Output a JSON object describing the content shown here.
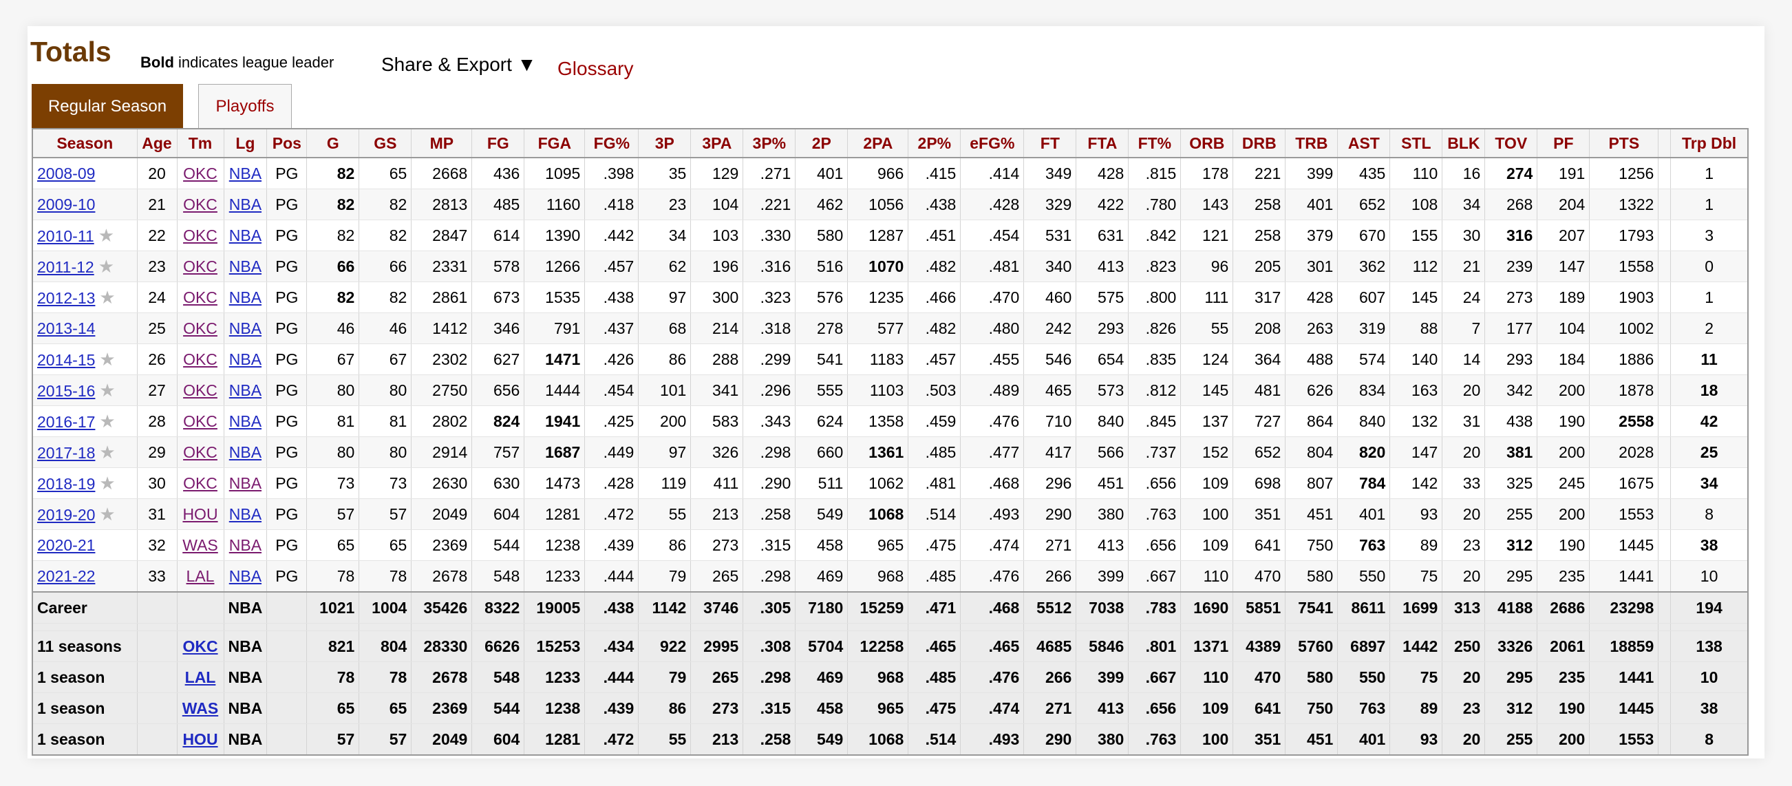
{
  "header": {
    "title": "Totals",
    "note_bold": "Bold",
    "note_rest": " indicates league leader",
    "share_label": "Share & Export ▼",
    "glossary_label": "Glossary"
  },
  "tabs": {
    "regular": "Regular Season",
    "playoffs": "Playoffs"
  },
  "columns": [
    "Season",
    "Age",
    "Tm",
    "Lg",
    "Pos",
    "G",
    "GS",
    "MP",
    "FG",
    "FGA",
    "FG%",
    "3P",
    "3PA",
    "3P%",
    "2P",
    "2PA",
    "2P%",
    "eFG%",
    "FT",
    "FTA",
    "FT%",
    "ORB",
    "DRB",
    "TRB",
    "AST",
    "STL",
    "BLK",
    "TOV",
    "PF",
    "PTS",
    "",
    "Trp Dbl"
  ],
  "rows": [
    {
      "season": "2008-09",
      "star": false,
      "age": "20",
      "tm": "OKC",
      "lg": "NBA",
      "pos": "PG",
      "stats": [
        "82",
        "65",
        "2668",
        "436",
        "1095",
        ".398",
        "35",
        "129",
        ".271",
        "401",
        "966",
        ".415",
        ".414",
        "349",
        "428",
        ".815",
        "178",
        "221",
        "399",
        "435",
        "110",
        "16",
        "274",
        "191",
        "1256"
      ],
      "trp": "1",
      "bold": [
        0,
        22
      ]
    },
    {
      "season": "2009-10",
      "star": false,
      "age": "21",
      "tm": "OKC",
      "lg": "NBA",
      "pos": "PG",
      "stats": [
        "82",
        "82",
        "2813",
        "485",
        "1160",
        ".418",
        "23",
        "104",
        ".221",
        "462",
        "1056",
        ".438",
        ".428",
        "329",
        "422",
        ".780",
        "143",
        "258",
        "401",
        "652",
        "108",
        "34",
        "268",
        "204",
        "1322"
      ],
      "trp": "1",
      "bold": [
        0
      ]
    },
    {
      "season": "2010-11",
      "star": true,
      "age": "22",
      "tm": "OKC",
      "lg": "NBA",
      "pos": "PG",
      "stats": [
        "82",
        "82",
        "2847",
        "614",
        "1390",
        ".442",
        "34",
        "103",
        ".330",
        "580",
        "1287",
        ".451",
        ".454",
        "531",
        "631",
        ".842",
        "121",
        "258",
        "379",
        "670",
        "155",
        "30",
        "316",
        "207",
        "1793"
      ],
      "trp": "3",
      "bold": [
        22
      ]
    },
    {
      "season": "2011-12",
      "star": true,
      "age": "23",
      "tm": "OKC",
      "lg": "NBA",
      "pos": "PG",
      "stats": [
        "66",
        "66",
        "2331",
        "578",
        "1266",
        ".457",
        "62",
        "196",
        ".316",
        "516",
        "1070",
        ".482",
        ".481",
        "340",
        "413",
        ".823",
        "96",
        "205",
        "301",
        "362",
        "112",
        "21",
        "239",
        "147",
        "1558"
      ],
      "trp": "0",
      "bold": [
        0,
        10
      ]
    },
    {
      "season": "2012-13",
      "star": true,
      "age": "24",
      "tm": "OKC",
      "lg": "NBA",
      "pos": "PG",
      "stats": [
        "82",
        "82",
        "2861",
        "673",
        "1535",
        ".438",
        "97",
        "300",
        ".323",
        "576",
        "1235",
        ".466",
        ".470",
        "460",
        "575",
        ".800",
        "111",
        "317",
        "428",
        "607",
        "145",
        "24",
        "273",
        "189",
        "1903"
      ],
      "trp": "1",
      "bold": [
        0
      ]
    },
    {
      "season": "2013-14",
      "star": false,
      "age": "25",
      "tm": "OKC",
      "lg": "NBA",
      "pos": "PG",
      "stats": [
        "46",
        "46",
        "1412",
        "346",
        "791",
        ".437",
        "68",
        "214",
        ".318",
        "278",
        "577",
        ".482",
        ".480",
        "242",
        "293",
        ".826",
        "55",
        "208",
        "263",
        "319",
        "88",
        "7",
        "177",
        "104",
        "1002"
      ],
      "trp": "2",
      "bold": []
    },
    {
      "season": "2014-15",
      "star": true,
      "age": "26",
      "tm": "OKC",
      "lg": "NBA",
      "pos": "PG",
      "stats": [
        "67",
        "67",
        "2302",
        "627",
        "1471",
        ".426",
        "86",
        "288",
        ".299",
        "541",
        "1183",
        ".457",
        ".455",
        "546",
        "654",
        ".835",
        "124",
        "364",
        "488",
        "574",
        "140",
        "14",
        "293",
        "184",
        "1886"
      ],
      "trp": "11",
      "bold": [
        4
      ],
      "trpBold": true
    },
    {
      "season": "2015-16",
      "star": true,
      "age": "27",
      "tm": "OKC",
      "lg": "NBA",
      "pos": "PG",
      "stats": [
        "80",
        "80",
        "2750",
        "656",
        "1444",
        ".454",
        "101",
        "341",
        ".296",
        "555",
        "1103",
        ".503",
        ".489",
        "465",
        "573",
        ".812",
        "145",
        "481",
        "626",
        "834",
        "163",
        "20",
        "342",
        "200",
        "1878"
      ],
      "trp": "18",
      "bold": [],
      "trpBold": true
    },
    {
      "season": "2016-17",
      "star": true,
      "age": "28",
      "tm": "OKC",
      "lg": "NBA",
      "pos": "PG",
      "stats": [
        "81",
        "81",
        "2802",
        "824",
        "1941",
        ".425",
        "200",
        "583",
        ".343",
        "624",
        "1358",
        ".459",
        ".476",
        "710",
        "840",
        ".845",
        "137",
        "727",
        "864",
        "840",
        "132",
        "31",
        "438",
        "190",
        "2558"
      ],
      "trp": "42",
      "bold": [
        3,
        4,
        24
      ],
      "trpBold": true
    },
    {
      "season": "2017-18",
      "star": true,
      "age": "29",
      "tm": "OKC",
      "lg": "NBA",
      "pos": "PG",
      "stats": [
        "80",
        "80",
        "2914",
        "757",
        "1687",
        ".449",
        "97",
        "326",
        ".298",
        "660",
        "1361",
        ".485",
        ".477",
        "417",
        "566",
        ".737",
        "152",
        "652",
        "804",
        "820",
        "147",
        "20",
        "381",
        "200",
        "2028"
      ],
      "trp": "25",
      "bold": [
        4,
        10,
        19,
        22
      ],
      "trpBold": true
    },
    {
      "season": "2018-19",
      "star": true,
      "age": "30",
      "tm": "OKC",
      "lg": "NBA",
      "pos": "PG",
      "stats": [
        "73",
        "73",
        "2630",
        "630",
        "1473",
        ".428",
        "119",
        "411",
        ".290",
        "511",
        "1062",
        ".481",
        ".468",
        "296",
        "451",
        ".656",
        "109",
        "698",
        "807",
        "784",
        "142",
        "33",
        "325",
        "245",
        "1675"
      ],
      "trp": "34",
      "bold": [
        19
      ],
      "trpBold": true
    },
    {
      "season": "2019-20",
      "star": true,
      "age": "31",
      "tm": "HOU",
      "lg": "NBA",
      "pos": "PG",
      "stats": [
        "57",
        "57",
        "2049",
        "604",
        "1281",
        ".472",
        "55",
        "213",
        ".258",
        "549",
        "1068",
        ".514",
        ".493",
        "290",
        "380",
        ".763",
        "100",
        "351",
        "451",
        "401",
        "93",
        "20",
        "255",
        "200",
        "1553"
      ],
      "trp": "8",
      "bold": [
        10
      ]
    },
    {
      "season": "2020-21",
      "star": false,
      "age": "32",
      "tm": "WAS",
      "lg": "NBA",
      "pos": "PG",
      "stats": [
        "65",
        "65",
        "2369",
        "544",
        "1238",
        ".439",
        "86",
        "273",
        ".315",
        "458",
        "965",
        ".475",
        ".474",
        "271",
        "413",
        ".656",
        "109",
        "641",
        "750",
        "763",
        "89",
        "23",
        "312",
        "190",
        "1445"
      ],
      "trp": "38",
      "bold": [
        19,
        22
      ],
      "trpBold": true
    },
    {
      "season": "2021-22",
      "star": false,
      "age": "33",
      "tm": "LAL",
      "lg": "NBA",
      "pos": "PG",
      "stats": [
        "78",
        "78",
        "2678",
        "548",
        "1233",
        ".444",
        "79",
        "265",
        ".298",
        "469",
        "968",
        ".485",
        ".476",
        "266",
        "399",
        ".667",
        "110",
        "470",
        "580",
        "550",
        "75",
        "20",
        "295",
        "235",
        "1441"
      ],
      "trp": "10",
      "bold": []
    }
  ],
  "career": {
    "label": "Career",
    "lg": "NBA",
    "stats": [
      "1021",
      "1004",
      "35426",
      "8322",
      "19005",
      ".438",
      "1142",
      "3746",
      ".305",
      "7180",
      "15259",
      ".471",
      ".468",
      "5512",
      "7038",
      ".783",
      "1690",
      "5851",
      "7541",
      "8611",
      "1699",
      "313",
      "4188",
      "2686",
      "23298"
    ],
    "trp": "194"
  },
  "teams": [
    {
      "label": "11 seasons",
      "tm": "OKC",
      "lg": "NBA",
      "stats": [
        "821",
        "804",
        "28330",
        "6626",
        "15253",
        ".434",
        "922",
        "2995",
        ".308",
        "5704",
        "12258",
        ".465",
        ".465",
        "4685",
        "5846",
        ".801",
        "1371",
        "4389",
        "5760",
        "6897",
        "1442",
        "250",
        "3326",
        "2061",
        "18859"
      ],
      "trp": "138"
    },
    {
      "label": "1 season",
      "tm": "LAL",
      "lg": "NBA",
      "stats": [
        "78",
        "78",
        "2678",
        "548",
        "1233",
        ".444",
        "79",
        "265",
        ".298",
        "469",
        "968",
        ".485",
        ".476",
        "266",
        "399",
        ".667",
        "110",
        "470",
        "580",
        "550",
        "75",
        "20",
        "295",
        "235",
        "1441"
      ],
      "trp": "10"
    },
    {
      "label": "1 season",
      "tm": "WAS",
      "lg": "NBA",
      "stats": [
        "65",
        "65",
        "2369",
        "544",
        "1238",
        ".439",
        "86",
        "273",
        ".315",
        "458",
        "965",
        ".475",
        ".474",
        "271",
        "413",
        ".656",
        "109",
        "641",
        "750",
        "763",
        "89",
        "23",
        "312",
        "190",
        "1445"
      ],
      "trp": "38"
    },
    {
      "label": "1 season",
      "tm": "HOU",
      "lg": "NBA",
      "stats": [
        "57",
        "57",
        "2049",
        "604",
        "1281",
        ".472",
        "55",
        "213",
        ".258",
        "549",
        "1068",
        ".514",
        ".493",
        "290",
        "380",
        ".763",
        "100",
        "351",
        "451",
        "401",
        "93",
        "20",
        "255",
        "200",
        "1553"
      ],
      "trp": "8"
    }
  ],
  "colors": {
    "title": "#6b3a06",
    "header_text": "#8b0000",
    "link": "#1f2ac2",
    "visited_link": "#7a1a6e",
    "active_tab": "#7c3f02"
  }
}
